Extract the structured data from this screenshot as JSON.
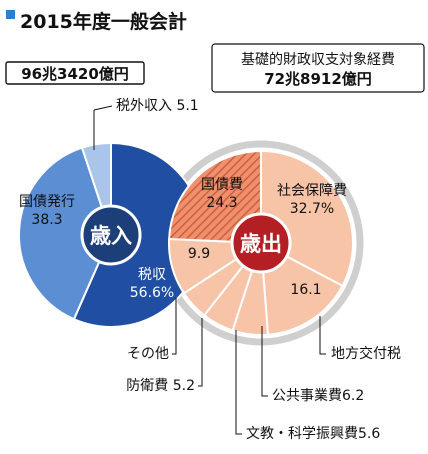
{
  "title": "2015年度一般会計",
  "total_label": "96兆3420億円",
  "base_expenditure": {
    "label": "基礎的財政収支対象経費",
    "amount": "72兆8912億円"
  },
  "colors": {
    "revenue_tax": "#1f4ea3",
    "revenue_bond": "#5b8ed3",
    "revenue_other": "#a9c6ea",
    "revenue_center": "#1c3f7a",
    "exp_bond": "#f08f6d",
    "exp_bond_hatch": "#c85a36",
    "exp_slices": "#f7c4a8",
    "exp_center": "#b31f22",
    "exp_ring": "#cfcfcf"
  },
  "chart_data": [
    {
      "type": "pie",
      "title": "",
      "center_label": "歳入",
      "unit": "%",
      "slices": [
        {
          "label": "税収",
          "value": 56.6,
          "value_text": "56.6%"
        },
        {
          "label": "国債発行",
          "value": 38.3,
          "value_text": "38.3"
        },
        {
          "label": "税外収入",
          "value": 5.1,
          "value_text": "5.1"
        }
      ]
    },
    {
      "type": "pie",
      "title": "",
      "center_label": "歳出",
      "unit": "%",
      "slices": [
        {
          "label": "社会保障費",
          "value": 32.7,
          "value_text": "32.7%"
        },
        {
          "label": "地方交付税",
          "value": 16.1,
          "value_text": "16.1"
        },
        {
          "label": "公共事業費",
          "value": 6.2,
          "value_text": "6.2"
        },
        {
          "label": "文教・科学振興費",
          "value": 5.6,
          "value_text": "5.6"
        },
        {
          "label": "防衛費",
          "value": 5.2,
          "value_text": "5.2"
        },
        {
          "label": "その他",
          "value": 9.9,
          "value_text": "9.9"
        },
        {
          "label": "国債費",
          "value": 24.3,
          "value_text": "24.3"
        }
      ]
    }
  ]
}
